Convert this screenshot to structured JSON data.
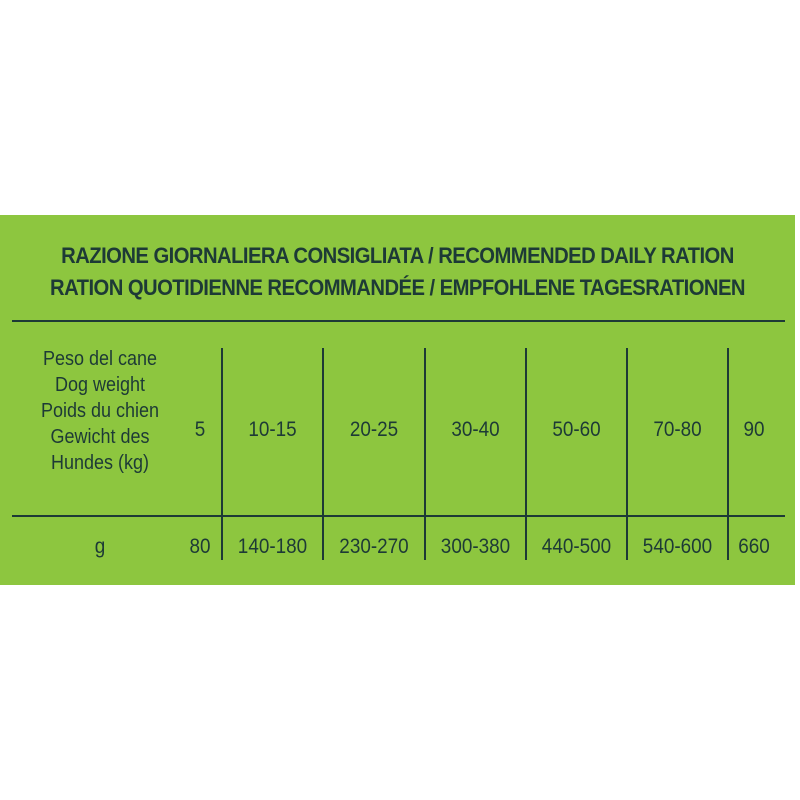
{
  "title_lines": [
    "RAZIONE GIORNALIERA CONSIGLIATA / RECOMMENDED DAILY RATION",
    "RATION QUOTIDIENNE RECOMMANDÉE / EMPFOHLENE TAGESRATIONEN"
  ],
  "table": {
    "row_header_lines": [
      "Peso del cane",
      "Dog weight",
      "Poids du chien",
      "Gewicht des",
      "Hundes (kg)"
    ],
    "weights": [
      "5",
      "10-15",
      "20-25",
      "30-40",
      "50-60",
      "70-80",
      "90"
    ],
    "grams_label": "g",
    "grams": [
      "80",
      "140-180",
      "230-270",
      "300-380",
      "440-500",
      "540-600",
      "660"
    ]
  },
  "colors": {
    "background": "#8dc63f",
    "text": "#1d3a36"
  }
}
